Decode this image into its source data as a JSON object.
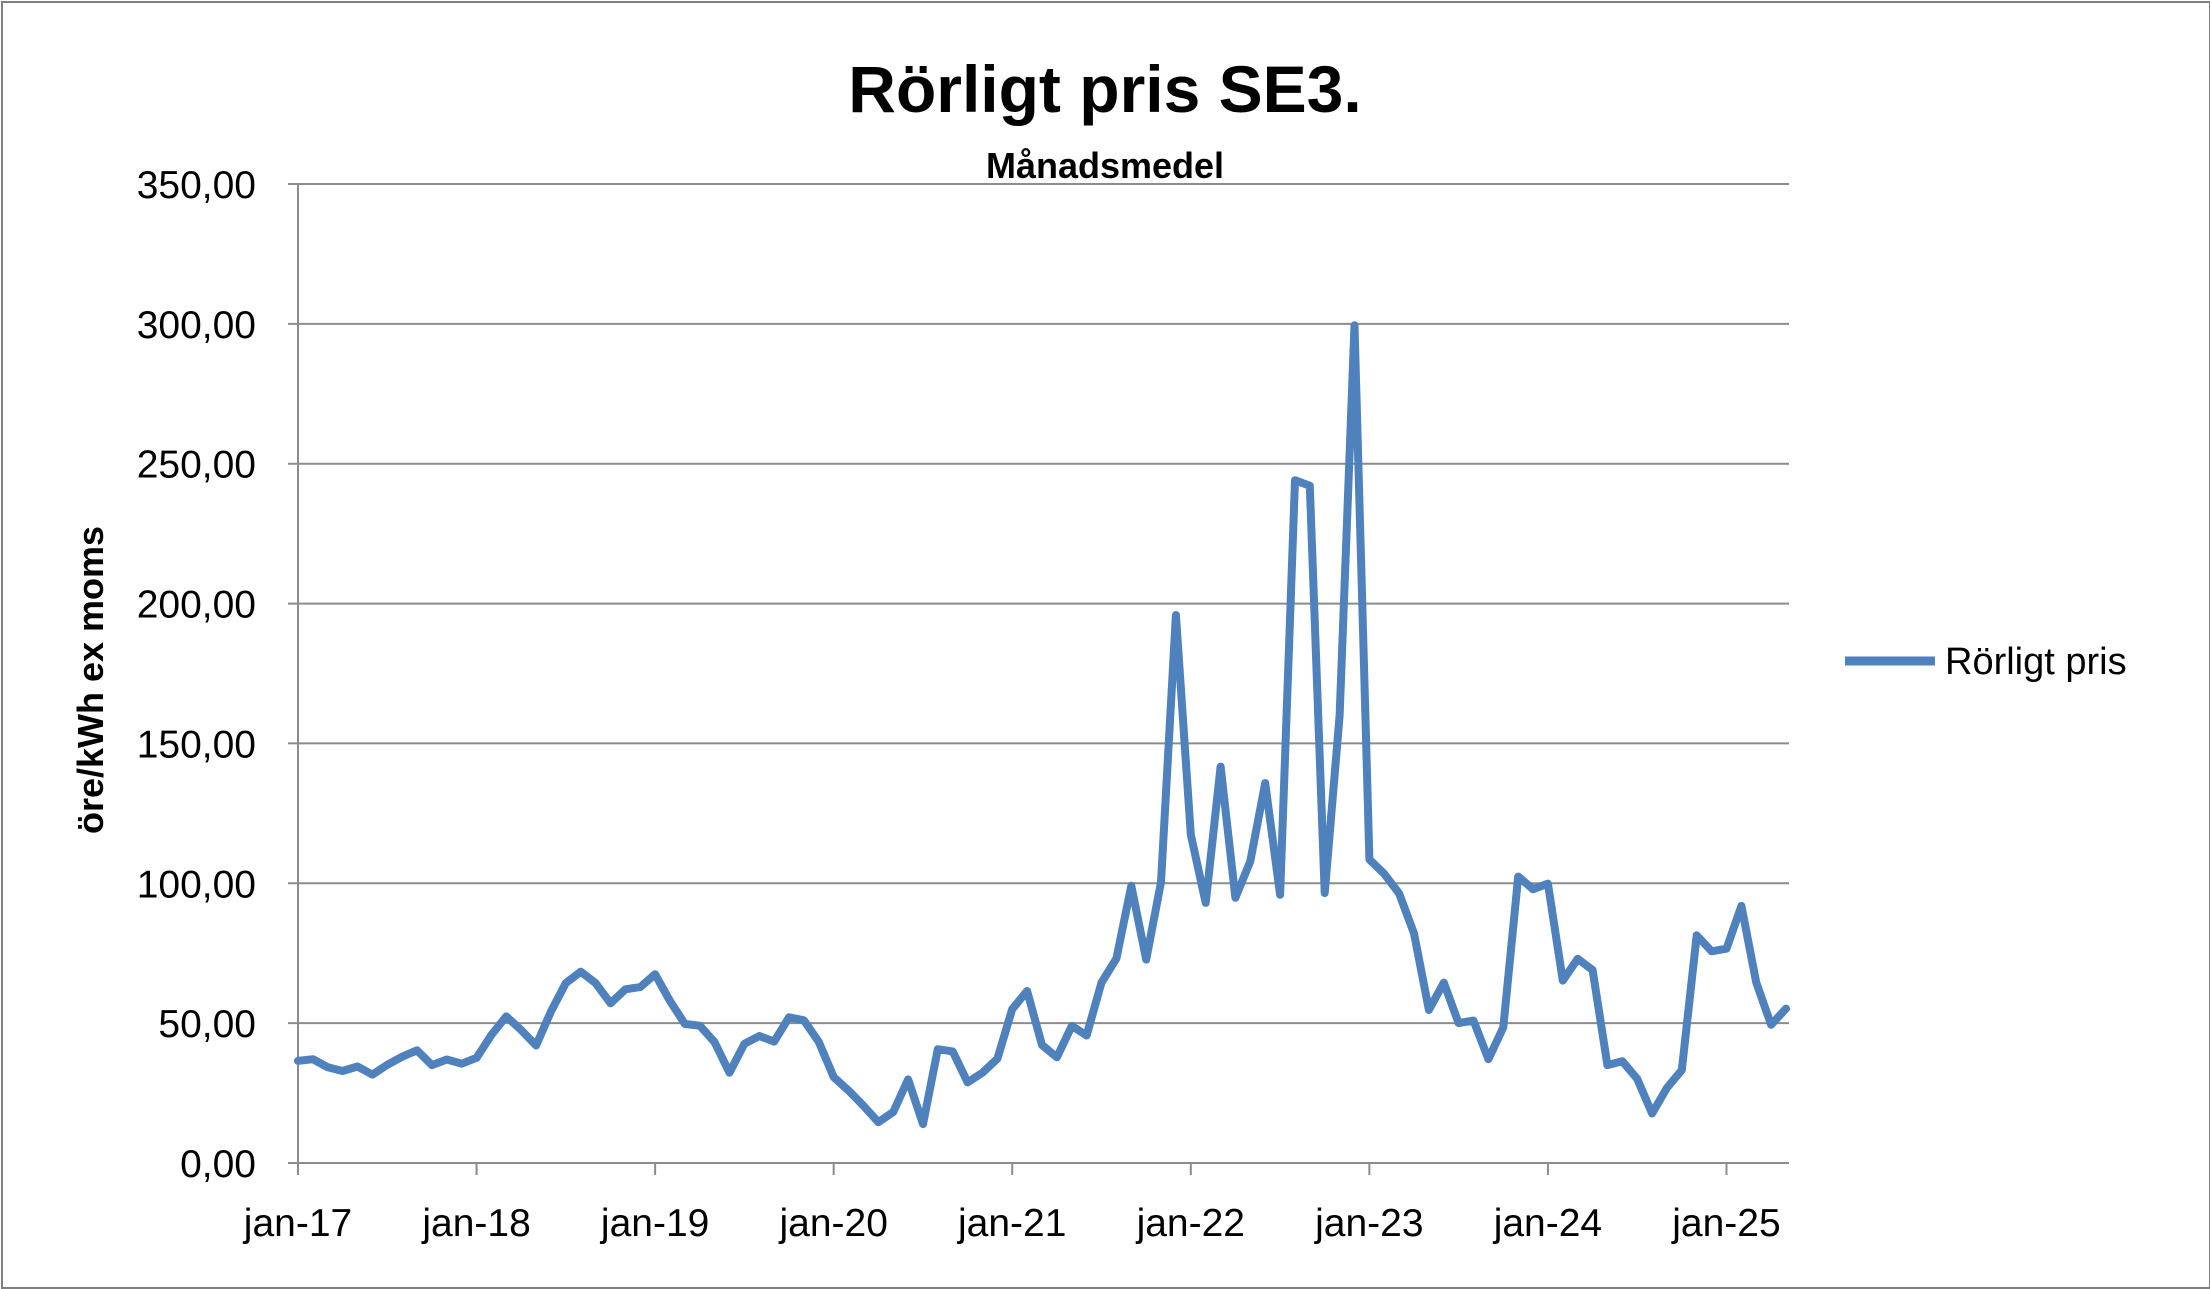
{
  "chart_data": {
    "type": "line",
    "title": "Rörligt pris SE3.",
    "subtitle": "Månadsmedel",
    "xlabel": "",
    "ylabel": "öre/kWh ex moms",
    "ylim": [
      0,
      350
    ],
    "yticks": [
      "0,00",
      "50,00",
      "100,00",
      "150,00",
      "200,00",
      "250,00",
      "300,00",
      "350,00"
    ],
    "xtick_labels": [
      "jan-17",
      "jan-18",
      "jan-19",
      "jan-20",
      "jan-21",
      "jan-22",
      "jan-23",
      "jan-24",
      "jan-25"
    ],
    "grid": true,
    "legend_position": "right",
    "color": "#4f81bd",
    "x_start": "jan-17",
    "series": [
      {
        "name": "Rörligt pris",
        "values": [
          36.5,
          37.1,
          34.2,
          32.9,
          34.5,
          31.6,
          35.1,
          38.0,
          40.3,
          35.0,
          37.0,
          35.5,
          37.6,
          45.8,
          52.4,
          47.5,
          42.0,
          54.2,
          64.3,
          68.4,
          64.3,
          57.1,
          62.1,
          62.9,
          67.5,
          57.9,
          49.7,
          49.1,
          43.2,
          32.3,
          42.6,
          45.4,
          43.4,
          52.1,
          51.0,
          43.3,
          30.7,
          25.9,
          20.5,
          14.6,
          18.2,
          29.9,
          13.9,
          40.7,
          39.9,
          28.8,
          32.3,
          37.3,
          55.0,
          61.5,
          42.2,
          37.8,
          49.0,
          45.6,
          64.5,
          73.1,
          99.1,
          72.7,
          100.4,
          195.9,
          117.4,
          93.0,
          141.7,
          94.8,
          107.9,
          135.8,
          95.9,
          244.1,
          242.1,
          96.5,
          159.9,
          299.5,
          108.5,
          103.4,
          96.4,
          82.1,
          54.7,
          64.5,
          50.0,
          50.9,
          37.1,
          48.5,
          102.4,
          97.9,
          99.9,
          65.2,
          73.0,
          69.0,
          35.0,
          36.4,
          30.1,
          17.7,
          26.9,
          33.2,
          81.4,
          75.7,
          76.6,
          91.9,
          64.6,
          49.4,
          55.2
        ]
      }
    ]
  }
}
